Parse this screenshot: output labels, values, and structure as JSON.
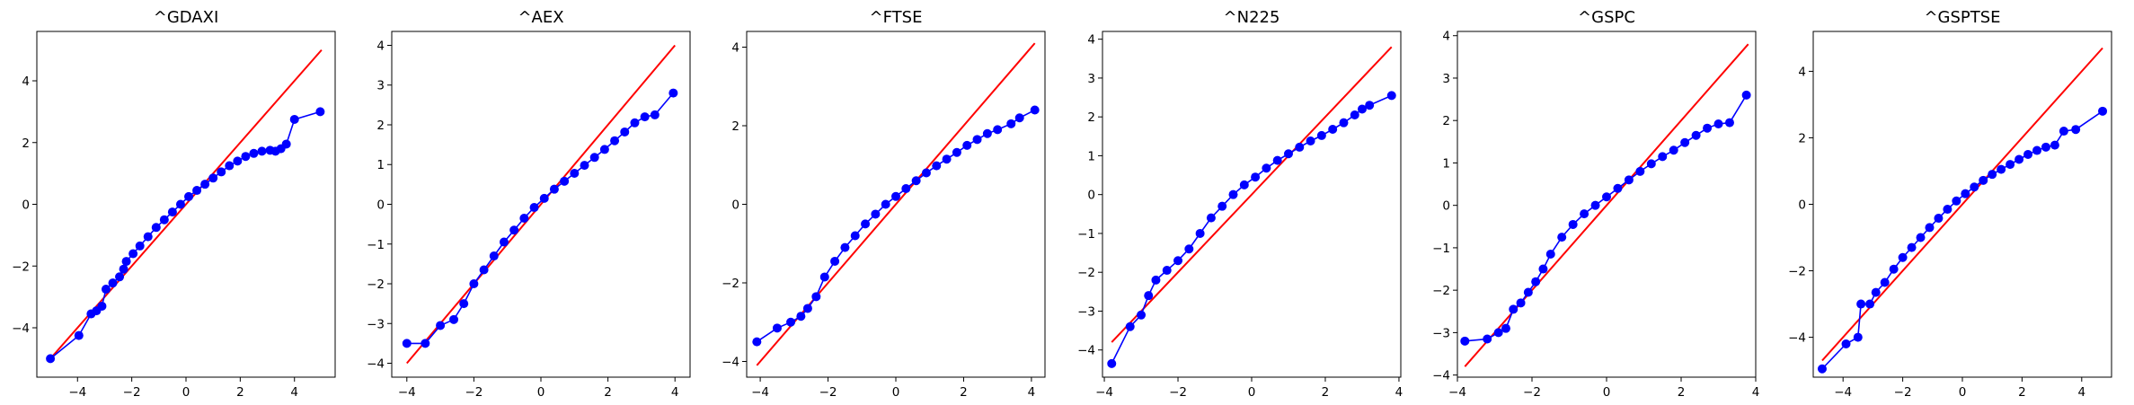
{
  "figure": {
    "background": "#ffffff"
  },
  "chart_data": [
    {
      "type": "scatter",
      "title": "^GDAXI",
      "xlim": [
        -5.5,
        5.5
      ],
      "ylim": [
        -5.6,
        5.6
      ],
      "xticks": [
        -4,
        -2,
        0,
        2,
        4
      ],
      "yticks": [
        -4,
        -2,
        0,
        2,
        4
      ],
      "ref_line": {
        "x": [
          -5.0,
          5.0
        ],
        "y": [
          -5.0,
          5.0
        ],
        "color": "#ff0000"
      },
      "series_color": "#0000ff",
      "points": [
        [
          -5.0,
          -5.0
        ],
        [
          -3.95,
          -4.25
        ],
        [
          -3.5,
          -3.55
        ],
        [
          -3.3,
          -3.45
        ],
        [
          -3.1,
          -3.3
        ],
        [
          -2.95,
          -2.75
        ],
        [
          -2.7,
          -2.55
        ],
        [
          -2.45,
          -2.35
        ],
        [
          -2.3,
          -2.1
        ],
        [
          -2.2,
          -1.85
        ],
        [
          -1.95,
          -1.6
        ],
        [
          -1.7,
          -1.35
        ],
        [
          -1.4,
          -1.05
        ],
        [
          -1.1,
          -0.75
        ],
        [
          -0.8,
          -0.5
        ],
        [
          -0.5,
          -0.25
        ],
        [
          -0.2,
          0.0
        ],
        [
          0.1,
          0.25
        ],
        [
          0.4,
          0.45
        ],
        [
          0.7,
          0.65
        ],
        [
          1.0,
          0.85
        ],
        [
          1.3,
          1.05
        ],
        [
          1.6,
          1.25
        ],
        [
          1.9,
          1.4
        ],
        [
          2.2,
          1.55
        ],
        [
          2.5,
          1.65
        ],
        [
          2.8,
          1.72
        ],
        [
          3.1,
          1.75
        ],
        [
          3.3,
          1.72
        ],
        [
          3.5,
          1.8
        ],
        [
          3.7,
          1.95
        ],
        [
          4.0,
          2.75
        ],
        [
          4.95,
          3.0
        ]
      ]
    },
    {
      "type": "scatter",
      "title": "^AEX",
      "xlim": [
        -4.45,
        4.45
      ],
      "ylim": [
        -4.35,
        4.35
      ],
      "xticks": [
        -4,
        -2,
        0,
        2,
        4
      ],
      "yticks": [
        -4,
        -3,
        -2,
        -1,
        0,
        1,
        2,
        3,
        4
      ],
      "ref_line": {
        "x": [
          -4.0,
          4.0
        ],
        "y": [
          -4.0,
          4.0
        ],
        "color": "#ff0000"
      },
      "series_color": "#0000ff",
      "points": [
        [
          -4.0,
          -3.5
        ],
        [
          -3.45,
          -3.5
        ],
        [
          -3.0,
          -3.05
        ],
        [
          -2.6,
          -2.9
        ],
        [
          -2.3,
          -2.5
        ],
        [
          -2.0,
          -2.0
        ],
        [
          -1.7,
          -1.65
        ],
        [
          -1.4,
          -1.3
        ],
        [
          -1.1,
          -0.95
        ],
        [
          -0.8,
          -0.65
        ],
        [
          -0.5,
          -0.35
        ],
        [
          -0.2,
          -0.08
        ],
        [
          0.1,
          0.15
        ],
        [
          0.4,
          0.38
        ],
        [
          0.7,
          0.58
        ],
        [
          1.0,
          0.78
        ],
        [
          1.3,
          0.98
        ],
        [
          1.6,
          1.18
        ],
        [
          1.9,
          1.38
        ],
        [
          2.2,
          1.6
        ],
        [
          2.5,
          1.82
        ],
        [
          2.8,
          2.05
        ],
        [
          3.1,
          2.2
        ],
        [
          3.4,
          2.25
        ],
        [
          3.95,
          2.8
        ]
      ]
    },
    {
      "type": "scatter",
      "title": "^FTSE",
      "xlim": [
        -4.4,
        4.4
      ],
      "ylim": [
        -4.4,
        4.4
      ],
      "xticks": [
        -4,
        -2,
        0,
        2,
        4
      ],
      "yticks": [
        -4,
        -2,
        0,
        2,
        4
      ],
      "ref_line": {
        "x": [
          -4.1,
          4.1
        ],
        "y": [
          -4.1,
          4.1
        ],
        "color": "#ff0000"
      },
      "series_color": "#0000ff",
      "points": [
        [
          -4.1,
          -3.5
        ],
        [
          -3.5,
          -3.15
        ],
        [
          -3.1,
          -3.0
        ],
        [
          -2.8,
          -2.85
        ],
        [
          -2.6,
          -2.65
        ],
        [
          -2.35,
          -2.35
        ],
        [
          -2.1,
          -1.85
        ],
        [
          -1.8,
          -1.45
        ],
        [
          -1.5,
          -1.1
        ],
        [
          -1.2,
          -0.8
        ],
        [
          -0.9,
          -0.5
        ],
        [
          -0.6,
          -0.25
        ],
        [
          -0.3,
          0.0
        ],
        [
          0.0,
          0.2
        ],
        [
          0.3,
          0.4
        ],
        [
          0.6,
          0.6
        ],
        [
          0.9,
          0.8
        ],
        [
          1.2,
          0.98
        ],
        [
          1.5,
          1.15
        ],
        [
          1.8,
          1.32
        ],
        [
          2.1,
          1.5
        ],
        [
          2.4,
          1.65
        ],
        [
          2.7,
          1.8
        ],
        [
          3.0,
          1.9
        ],
        [
          3.4,
          2.05
        ],
        [
          3.65,
          2.2
        ],
        [
          4.1,
          2.4
        ]
      ]
    },
    {
      "type": "scatter",
      "title": "^N225",
      "xlim": [
        -4.05,
        4.05
      ],
      "ylim": [
        -4.7,
        4.2
      ],
      "xticks": [
        -4,
        -2,
        0,
        2,
        4
      ],
      "yticks": [
        -4,
        -3,
        -2,
        -1,
        0,
        1,
        2,
        3,
        4
      ],
      "ref_line": {
        "x": [
          -3.8,
          3.8
        ],
        "y": [
          -3.8,
          3.8
        ],
        "color": "#ff0000"
      },
      "series_color": "#0000ff",
      "points": [
        [
          -3.8,
          -4.35
        ],
        [
          -3.3,
          -3.4
        ],
        [
          -3.0,
          -3.1
        ],
        [
          -2.8,
          -2.6
        ],
        [
          -2.6,
          -2.2
        ],
        [
          -2.3,
          -1.95
        ],
        [
          -2.0,
          -1.7
        ],
        [
          -1.7,
          -1.4
        ],
        [
          -1.4,
          -1.0
        ],
        [
          -1.1,
          -0.6
        ],
        [
          -0.8,
          -0.3
        ],
        [
          -0.5,
          0.0
        ],
        [
          -0.2,
          0.25
        ],
        [
          0.1,
          0.45
        ],
        [
          0.4,
          0.68
        ],
        [
          0.7,
          0.88
        ],
        [
          1.0,
          1.05
        ],
        [
          1.3,
          1.22
        ],
        [
          1.6,
          1.38
        ],
        [
          1.9,
          1.52
        ],
        [
          2.2,
          1.68
        ],
        [
          2.5,
          1.85
        ],
        [
          2.8,
          2.05
        ],
        [
          3.0,
          2.2
        ],
        [
          3.2,
          2.3
        ],
        [
          3.8,
          2.55
        ]
      ]
    },
    {
      "type": "scatter",
      "title": "^GSPC",
      "xlim": [
        -4.0,
        4.0
      ],
      "ylim": [
        -4.05,
        4.1
      ],
      "xticks": [
        -4,
        -2,
        0,
        2,
        4
      ],
      "yticks": [
        -4,
        -3,
        -2,
        -1,
        0,
        1,
        2,
        3,
        4
      ],
      "ref_line": {
        "x": [
          -3.8,
          3.8
        ],
        "y": [
          -3.8,
          3.8
        ],
        "color": "#ff0000"
      },
      "series_color": "#0000ff",
      "points": [
        [
          -3.8,
          -3.2
        ],
        [
          -3.2,
          -3.15
        ],
        [
          -2.9,
          -3.0
        ],
        [
          -2.7,
          -2.9
        ],
        [
          -2.5,
          -2.45
        ],
        [
          -2.3,
          -2.3
        ],
        [
          -2.1,
          -2.05
        ],
        [
          -1.9,
          -1.8
        ],
        [
          -1.7,
          -1.5
        ],
        [
          -1.5,
          -1.15
        ],
        [
          -1.2,
          -0.75
        ],
        [
          -0.9,
          -0.45
        ],
        [
          -0.6,
          -0.2
        ],
        [
          -0.3,
          0.0
        ],
        [
          0.0,
          0.2
        ],
        [
          0.3,
          0.4
        ],
        [
          0.6,
          0.6
        ],
        [
          0.9,
          0.8
        ],
        [
          1.2,
          0.98
        ],
        [
          1.5,
          1.15
        ],
        [
          1.8,
          1.3
        ],
        [
          2.1,
          1.48
        ],
        [
          2.4,
          1.65
        ],
        [
          2.7,
          1.82
        ],
        [
          3.0,
          1.92
        ],
        [
          3.3,
          1.95
        ],
        [
          3.75,
          2.6
        ]
      ]
    },
    {
      "type": "scatter",
      "title": "^GSPTSE",
      "xlim": [
        -5.0,
        5.0
      ],
      "ylim": [
        -5.2,
        5.2
      ],
      "xticks": [
        -4,
        -2,
        0,
        2,
        4
      ],
      "yticks": [
        -4,
        -2,
        0,
        2,
        4
      ],
      "ref_line": {
        "x": [
          -4.7,
          4.7
        ],
        "y": [
          -4.7,
          4.7
        ],
        "color": "#ff0000"
      },
      "series_color": "#0000ff",
      "points": [
        [
          -4.7,
          -4.95
        ],
        [
          -3.9,
          -4.2
        ],
        [
          -3.5,
          -4.0
        ],
        [
          -3.4,
          -3.0
        ],
        [
          -3.1,
          -3.0
        ],
        [
          -2.9,
          -2.65
        ],
        [
          -2.6,
          -2.35
        ],
        [
          -2.3,
          -1.95
        ],
        [
          -2.0,
          -1.6
        ],
        [
          -1.7,
          -1.3
        ],
        [
          -1.4,
          -1.0
        ],
        [
          -1.1,
          -0.7
        ],
        [
          -0.8,
          -0.42
        ],
        [
          -0.5,
          -0.15
        ],
        [
          -0.2,
          0.1
        ],
        [
          0.1,
          0.32
        ],
        [
          0.4,
          0.52
        ],
        [
          0.7,
          0.72
        ],
        [
          1.0,
          0.9
        ],
        [
          1.3,
          1.05
        ],
        [
          1.6,
          1.2
        ],
        [
          1.9,
          1.35
        ],
        [
          2.2,
          1.5
        ],
        [
          2.5,
          1.62
        ],
        [
          2.8,
          1.72
        ],
        [
          3.1,
          1.78
        ],
        [
          3.4,
          2.2
        ],
        [
          3.8,
          2.25
        ],
        [
          4.7,
          2.8
        ]
      ]
    }
  ]
}
